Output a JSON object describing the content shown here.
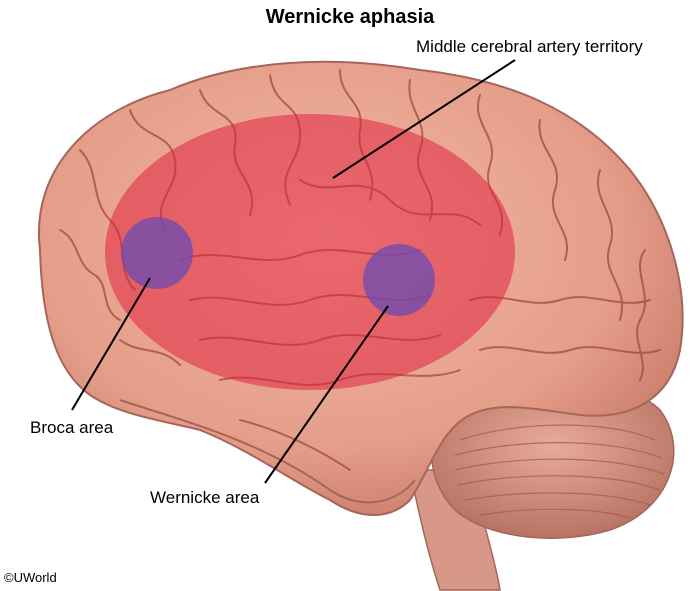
{
  "title": "Wernicke aphasia",
  "labels": {
    "mca": "Middle cerebral artery territory",
    "broca": "Broca area",
    "wernicke": "Wernicke area"
  },
  "copyright": "©UWorld",
  "colors": {
    "brain": "#e9a28f",
    "brain_dark": "#c97464",
    "gyri": "#a2493c",
    "territory": "#e0243f",
    "area": "#6a4bb2",
    "cerebellum": "#d39181"
  }
}
